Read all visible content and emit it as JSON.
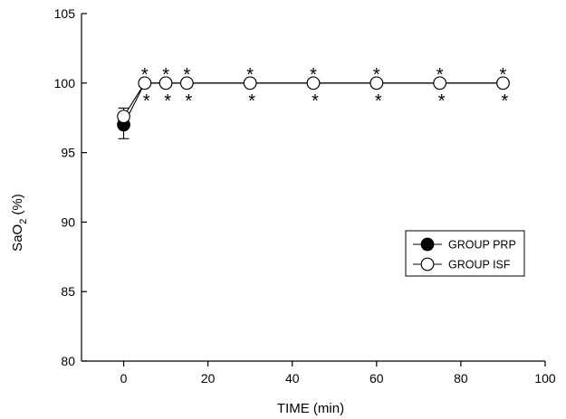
{
  "chart_data": {
    "type": "line",
    "title": "",
    "xlabel": "TIME (min)",
    "ylabel": {
      "base": "SaO",
      "sub": "2",
      "unit": " (%)"
    },
    "xlim": [
      -10,
      100
    ],
    "ylim": [
      80,
      105
    ],
    "xticks": [
      "0",
      "20",
      "40",
      "60",
      "80",
      "100"
    ],
    "yticks": [
      "80",
      "85",
      "90",
      "95",
      "100",
      "105"
    ],
    "series": [
      {
        "name": "GROUP PRP",
        "marker": "filled-circle",
        "color": "#000000",
        "x": [
          0,
          5,
          10,
          15,
          30,
          45,
          60,
          75,
          90
        ],
        "y": [
          97.0,
          100,
          100,
          100,
          100,
          100,
          100,
          100,
          100
        ],
        "err_low": [
          1.0,
          0,
          0,
          0,
          0,
          0,
          0,
          0,
          0
        ],
        "err_high": [
          0,
          0,
          0,
          0,
          0,
          0,
          0,
          0,
          0
        ]
      },
      {
        "name": "GROUP ISF",
        "marker": "open-circle",
        "color": "#000000",
        "x": [
          0,
          5,
          10,
          15,
          30,
          45,
          60,
          75,
          90
        ],
        "y": [
          97.6,
          100,
          100,
          100,
          100,
          100,
          100,
          100,
          100
        ],
        "err_low": [
          0,
          0,
          0,
          0,
          0,
          0,
          0,
          0,
          0
        ],
        "err_high": [
          0.6,
          0,
          0,
          0,
          0,
          0,
          0,
          0,
          0
        ]
      }
    ],
    "annotations": {
      "star_text": "*",
      "stars_above_x": [
        5,
        10,
        15,
        30,
        45,
        60,
        75,
        90
      ],
      "stars_below_x": [
        5,
        10,
        15,
        30,
        45,
        60,
        75,
        90
      ]
    },
    "legend": {
      "position": "right-middle"
    },
    "grid": false
  }
}
